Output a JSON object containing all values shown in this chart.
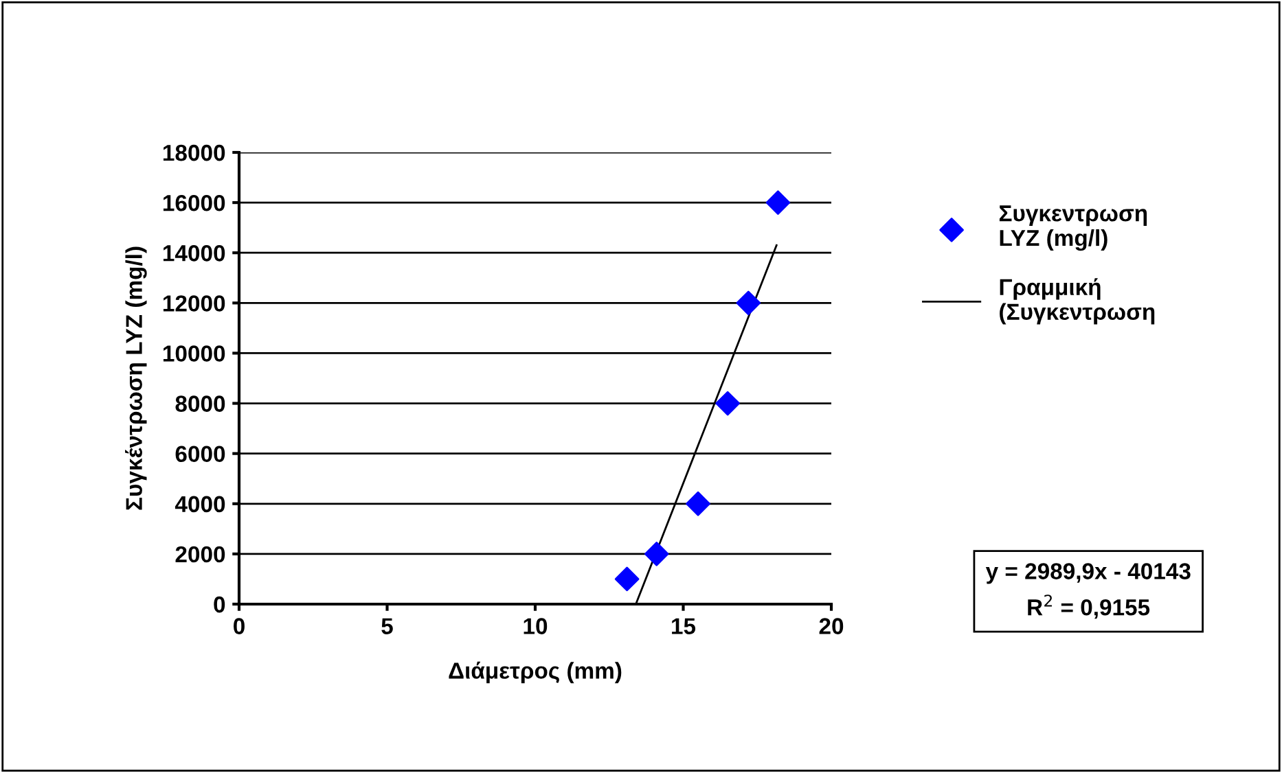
{
  "chart_data": {
    "type": "scatter",
    "xlabel": "Διάμετρος (mm)",
    "ylabel": "Συγκέντρωση LYZ (mg/l)",
    "x": [
      13.1,
      14.1,
      15.5,
      16.5,
      17.2,
      18.2
    ],
    "series": [
      {
        "name": "Συγκεντρωση\nLYZ (mg/l)",
        "color": "#0000ff",
        "marker": "diamond",
        "values": [
          1000,
          2000,
          4000,
          8000,
          12000,
          16000
        ]
      },
      {
        "name": "Γραμμική\n(Συγκεντρωση",
        "type": "line",
        "color": "#000000",
        "marker": "none",
        "line_style": "solid",
        "x": [
          13.4,
          18.15
        ],
        "values": [
          0,
          14300
        ]
      }
    ],
    "xlim": [
      0,
      20
    ],
    "xticks": [
      0,
      5,
      10,
      15,
      20
    ],
    "ylim": [
      0,
      18000
    ],
    "yticks": [
      0,
      2000,
      4000,
      6000,
      8000,
      10000,
      12000,
      14000,
      16000,
      18000
    ],
    "grid": "y",
    "legend": "right",
    "annotations": [
      "y = 2989,9x - 40143\nR$^{2}$ = 0,9155"
    ]
  }
}
